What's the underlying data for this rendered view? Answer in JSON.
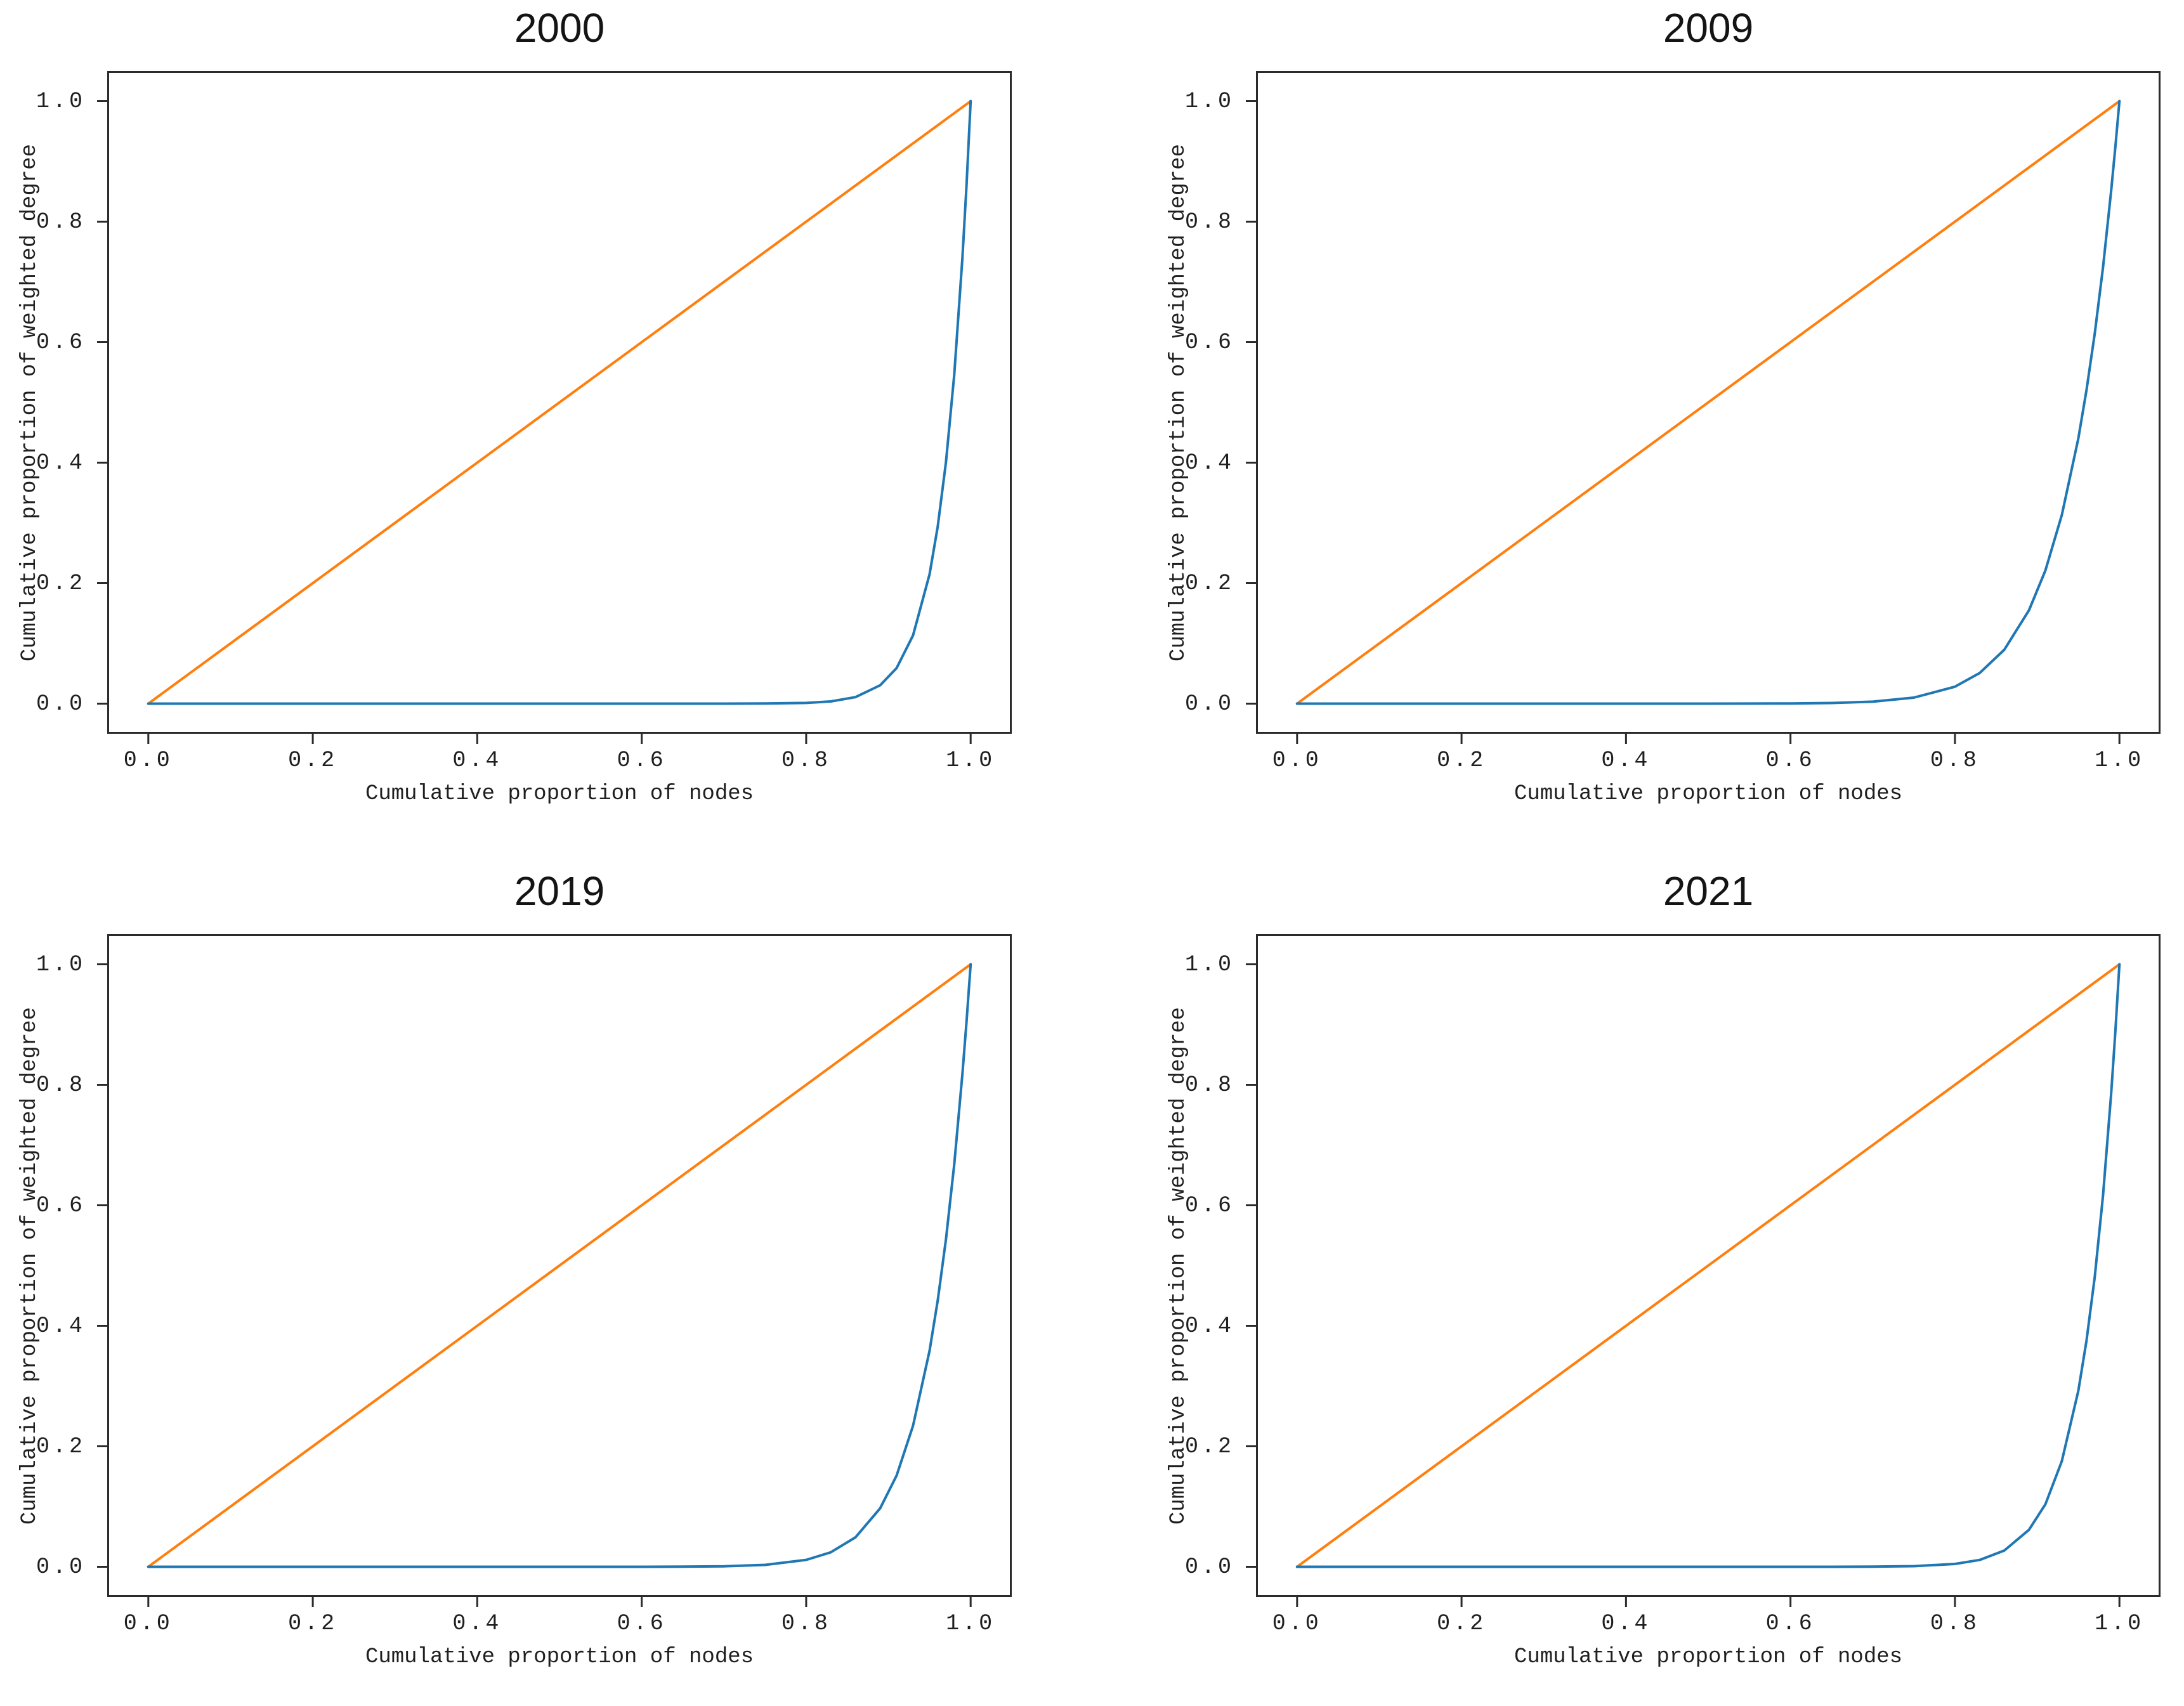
{
  "figure": {
    "background": "#ffffff",
    "axis_color": "#2b2b2b",
    "text_color": "#1f1f1f",
    "equality_line_color": "#ff7f0e",
    "lorenz_curve_color": "#1f77b4",
    "tick_labels": [
      "0.0",
      "0.2",
      "0.4",
      "0.6",
      "0.8",
      "1.0"
    ],
    "tick_values": [
      0,
      0.2,
      0.4,
      0.6,
      0.8,
      1.0
    ],
    "axis_min": -0.05,
    "axis_max": 1.05
  },
  "chart_data": [
    {
      "type": "line",
      "title": "2000",
      "xlabel": "Cumulative proportion of nodes",
      "ylabel": "Cumulative proportion of weighted degree",
      "xlim": [
        -0.05,
        1.05
      ],
      "ylim": [
        -0.05,
        1.05
      ],
      "xticks": [
        0,
        0.2,
        0.4,
        0.6,
        0.8,
        1.0
      ],
      "yticks": [
        0,
        0.2,
        0.4,
        0.6,
        0.8,
        1.0
      ],
      "grid": false,
      "legend": "none",
      "series": [
        {
          "name": "equality-line",
          "color": "#ff7f0e",
          "x": [
            0,
            1
          ],
          "y": [
            0,
            1
          ]
        },
        {
          "name": "lorenz-curve",
          "color": "#1f77b4",
          "x": [
            0,
            0.1,
            0.2,
            0.3,
            0.4,
            0.5,
            0.55,
            0.6,
            0.65,
            0.7,
            0.75,
            0.8,
            0.83,
            0.86,
            0.89,
            0.91,
            0.93,
            0.95,
            0.96,
            0.97,
            0.98,
            0.99,
            0.995,
            1
          ],
          "y": [
            0,
            0,
            0,
            0,
            0,
            0,
            0,
            0,
            0,
            0,
            0.0002,
            0.0012,
            0.0037,
            0.0108,
            0.0305,
            0.0591,
            0.1134,
            0.2146,
            0.2939,
            0.401,
            0.5455,
            0.7397,
            0.8604,
            1
          ]
        }
      ]
    },
    {
      "type": "line",
      "title": "2009",
      "xlabel": "Cumulative proportion of nodes",
      "ylabel": "Cumulative proportion of weighted degree",
      "xlim": [
        -0.05,
        1.05
      ],
      "ylim": [
        -0.05,
        1.05
      ],
      "xticks": [
        0,
        0.2,
        0.4,
        0.6,
        0.8,
        1.0
      ],
      "yticks": [
        0,
        0.2,
        0.4,
        0.6,
        0.8,
        1.0
      ],
      "grid": false,
      "legend": "none",
      "series": [
        {
          "name": "equality-line",
          "color": "#ff7f0e",
          "x": [
            0,
            1
          ],
          "y": [
            0,
            1
          ]
        },
        {
          "name": "lorenz-curve",
          "color": "#1f77b4",
          "x": [
            0,
            0.1,
            0.2,
            0.3,
            0.4,
            0.5,
            0.55,
            0.6,
            0.65,
            0.7,
            0.75,
            0.8,
            0.83,
            0.86,
            0.89,
            0.91,
            0.93,
            0.95,
            0.96,
            0.97,
            0.98,
            0.99,
            0.995,
            1
          ],
          "y": [
            0,
            0,
            0,
            0,
            0,
            0,
            0.0001,
            0.0003,
            0.001,
            0.0033,
            0.01,
            0.0281,
            0.0507,
            0.0895,
            0.155,
            0.2211,
            0.3131,
            0.4401,
            0.5204,
            0.6143,
            0.7238,
            0.8515,
            0.9229,
            1
          ]
        }
      ]
    },
    {
      "type": "line",
      "title": "2019",
      "xlabel": "Cumulative proportion of nodes",
      "ylabel": "Cumulative proportion of weighted degree",
      "xlim": [
        -0.05,
        1.05
      ],
      "ylim": [
        -0.05,
        1.05
      ],
      "xticks": [
        0,
        0.2,
        0.4,
        0.6,
        0.8,
        1.0
      ],
      "yticks": [
        0,
        0.2,
        0.4,
        0.6,
        0.8,
        1.0
      ],
      "grid": false,
      "legend": "none",
      "series": [
        {
          "name": "equality-line",
          "color": "#ff7f0e",
          "x": [
            0,
            1
          ],
          "y": [
            0,
            1
          ]
        },
        {
          "name": "lorenz-curve",
          "color": "#1f77b4",
          "x": [
            0,
            0.1,
            0.2,
            0.3,
            0.4,
            0.5,
            0.55,
            0.6,
            0.65,
            0.7,
            0.75,
            0.8,
            0.83,
            0.86,
            0.89,
            0.91,
            0.93,
            0.95,
            0.96,
            0.97,
            0.98,
            0.99,
            0.995,
            1
          ],
          "y": [
            0,
            0,
            0,
            0,
            0,
            0,
            0,
            0,
            0.0002,
            0.0008,
            0.0032,
            0.0115,
            0.0241,
            0.049,
            0.0972,
            0.1516,
            0.2342,
            0.3585,
            0.442,
            0.5438,
            0.6676,
            0.8179,
            0.9046,
            1
          ]
        }
      ]
    },
    {
      "type": "line",
      "title": "2021",
      "xlabel": "Cumulative proportion of nodes",
      "ylabel": "Cumulative proportion of weighted degree",
      "xlim": [
        -0.05,
        1.05
      ],
      "ylim": [
        -0.05,
        1.05
      ],
      "xticks": [
        0,
        0.2,
        0.4,
        0.6,
        0.8,
        1.0
      ],
      "yticks": [
        0,
        0.2,
        0.4,
        0.6,
        0.8,
        1.0
      ],
      "grid": false,
      "legend": "none",
      "series": [
        {
          "name": "equality-line",
          "color": "#ff7f0e",
          "x": [
            0,
            1
          ],
          "y": [
            0,
            1
          ]
        },
        {
          "name": "lorenz-curve",
          "color": "#1f77b4",
          "x": [
            0,
            0.1,
            0.2,
            0.3,
            0.4,
            0.5,
            0.55,
            0.6,
            0.65,
            0.7,
            0.75,
            0.8,
            0.83,
            0.86,
            0.89,
            0.91,
            0.93,
            0.95,
            0.96,
            0.97,
            0.98,
            0.99,
            0.995,
            1
          ],
          "y": [
            0,
            0,
            0,
            0,
            0,
            0,
            0,
            0,
            0,
            0.0002,
            0.001,
            0.0047,
            0.0114,
            0.027,
            0.0614,
            0.1038,
            0.1754,
            0.292,
            0.3754,
            0.4811,
            0.6158,
            0.7857,
            0.8869,
            1
          ]
        }
      ]
    }
  ]
}
